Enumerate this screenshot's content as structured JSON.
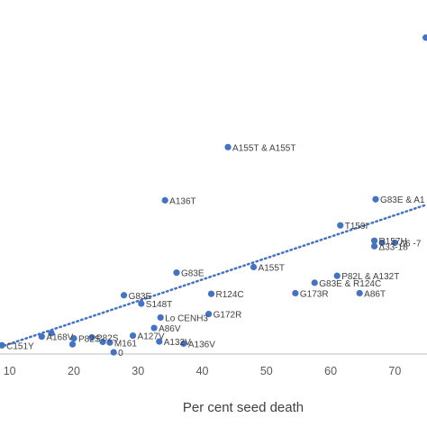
{
  "chart_data": {
    "type": "scatter",
    "xlabel": "Per cent seed death",
    "ylabel": "",
    "title": "",
    "xlim": [
      8.5,
      75
    ],
    "ylim": [
      0,
      100
    ],
    "xticks": [
      "10",
      "20",
      "30",
      "40",
      "50",
      "60",
      "70"
    ],
    "grid": false,
    "trendline": {
      "style": "dotted",
      "from": [
        8.5,
        2
      ],
      "to": [
        75,
        43
      ]
    },
    "colors": {
      "points": "#4472c4",
      "trendline": "#4472c4",
      "axis": "#bfbfbf"
    },
    "points": [
      {
        "x": 74.8,
        "y": 91,
        "label": ""
      },
      {
        "x": 44,
        "y": 59.5,
        "label": "A155T & A155T"
      },
      {
        "x": 34.2,
        "y": 44.2,
        "label": "A136T"
      },
      {
        "x": 67,
        "y": 44.5,
        "label": "G83E & A1"
      },
      {
        "x": 61.5,
        "y": 37,
        "label": "T159I"
      },
      {
        "x": 66.8,
        "y": 32.6,
        "label": "R157H"
      },
      {
        "x": 68,
        "y": 32,
        "label": ""
      },
      {
        "x": 70,
        "y": 32,
        "label": "Δ6 -7"
      },
      {
        "x": 66.8,
        "y": 31,
        "label": "Δ33-18"
      },
      {
        "x": 36,
        "y": 23.4,
        "label": "G83E"
      },
      {
        "x": 48,
        "y": 25,
        "label": "A155T"
      },
      {
        "x": 61,
        "y": 22.5,
        "label": "P82L & A132T"
      },
      {
        "x": 57.5,
        "y": 20.5,
        "label": "G83E & R124C"
      },
      {
        "x": 27.8,
        "y": 16.9,
        "label": "G83E"
      },
      {
        "x": 41.4,
        "y": 17.3,
        "label": "R124C"
      },
      {
        "x": 54.5,
        "y": 17.5,
        "label": "G173R"
      },
      {
        "x": 64.5,
        "y": 17.5,
        "label": "A86T"
      },
      {
        "x": 30.5,
        "y": 14.5,
        "label": "S148T"
      },
      {
        "x": 41,
        "y": 11.5,
        "label": "G172R"
      },
      {
        "x": 33.5,
        "y": 10.5,
        "label": "Lo CENH3"
      },
      {
        "x": 15,
        "y": 5,
        "label": "A168V"
      },
      {
        "x": 16.5,
        "y": 6,
        "label": ""
      },
      {
        "x": 32.5,
        "y": 7.5,
        "label": "A86V"
      },
      {
        "x": 29.2,
        "y": 5.3,
        "label": "A127V"
      },
      {
        "x": 8.8,
        "y": 2.5,
        "label": "C151Y"
      },
      {
        "x": 20,
        "y": 4.5,
        "label": "P82S"
      },
      {
        "x": 22.8,
        "y": 4.8,
        "label": "P82S"
      },
      {
        "x": 24.5,
        "y": 3.5,
        "label": ""
      },
      {
        "x": 25.6,
        "y": 3.3,
        "label": "M161"
      },
      {
        "x": 19.8,
        "y": 2.8,
        "label": ""
      },
      {
        "x": 33.3,
        "y": 3.6,
        "label": "A132V"
      },
      {
        "x": 37.1,
        "y": 3.0,
        "label": "A136V"
      },
      {
        "x": 26.2,
        "y": 0.5,
        "label": "0"
      }
    ]
  }
}
